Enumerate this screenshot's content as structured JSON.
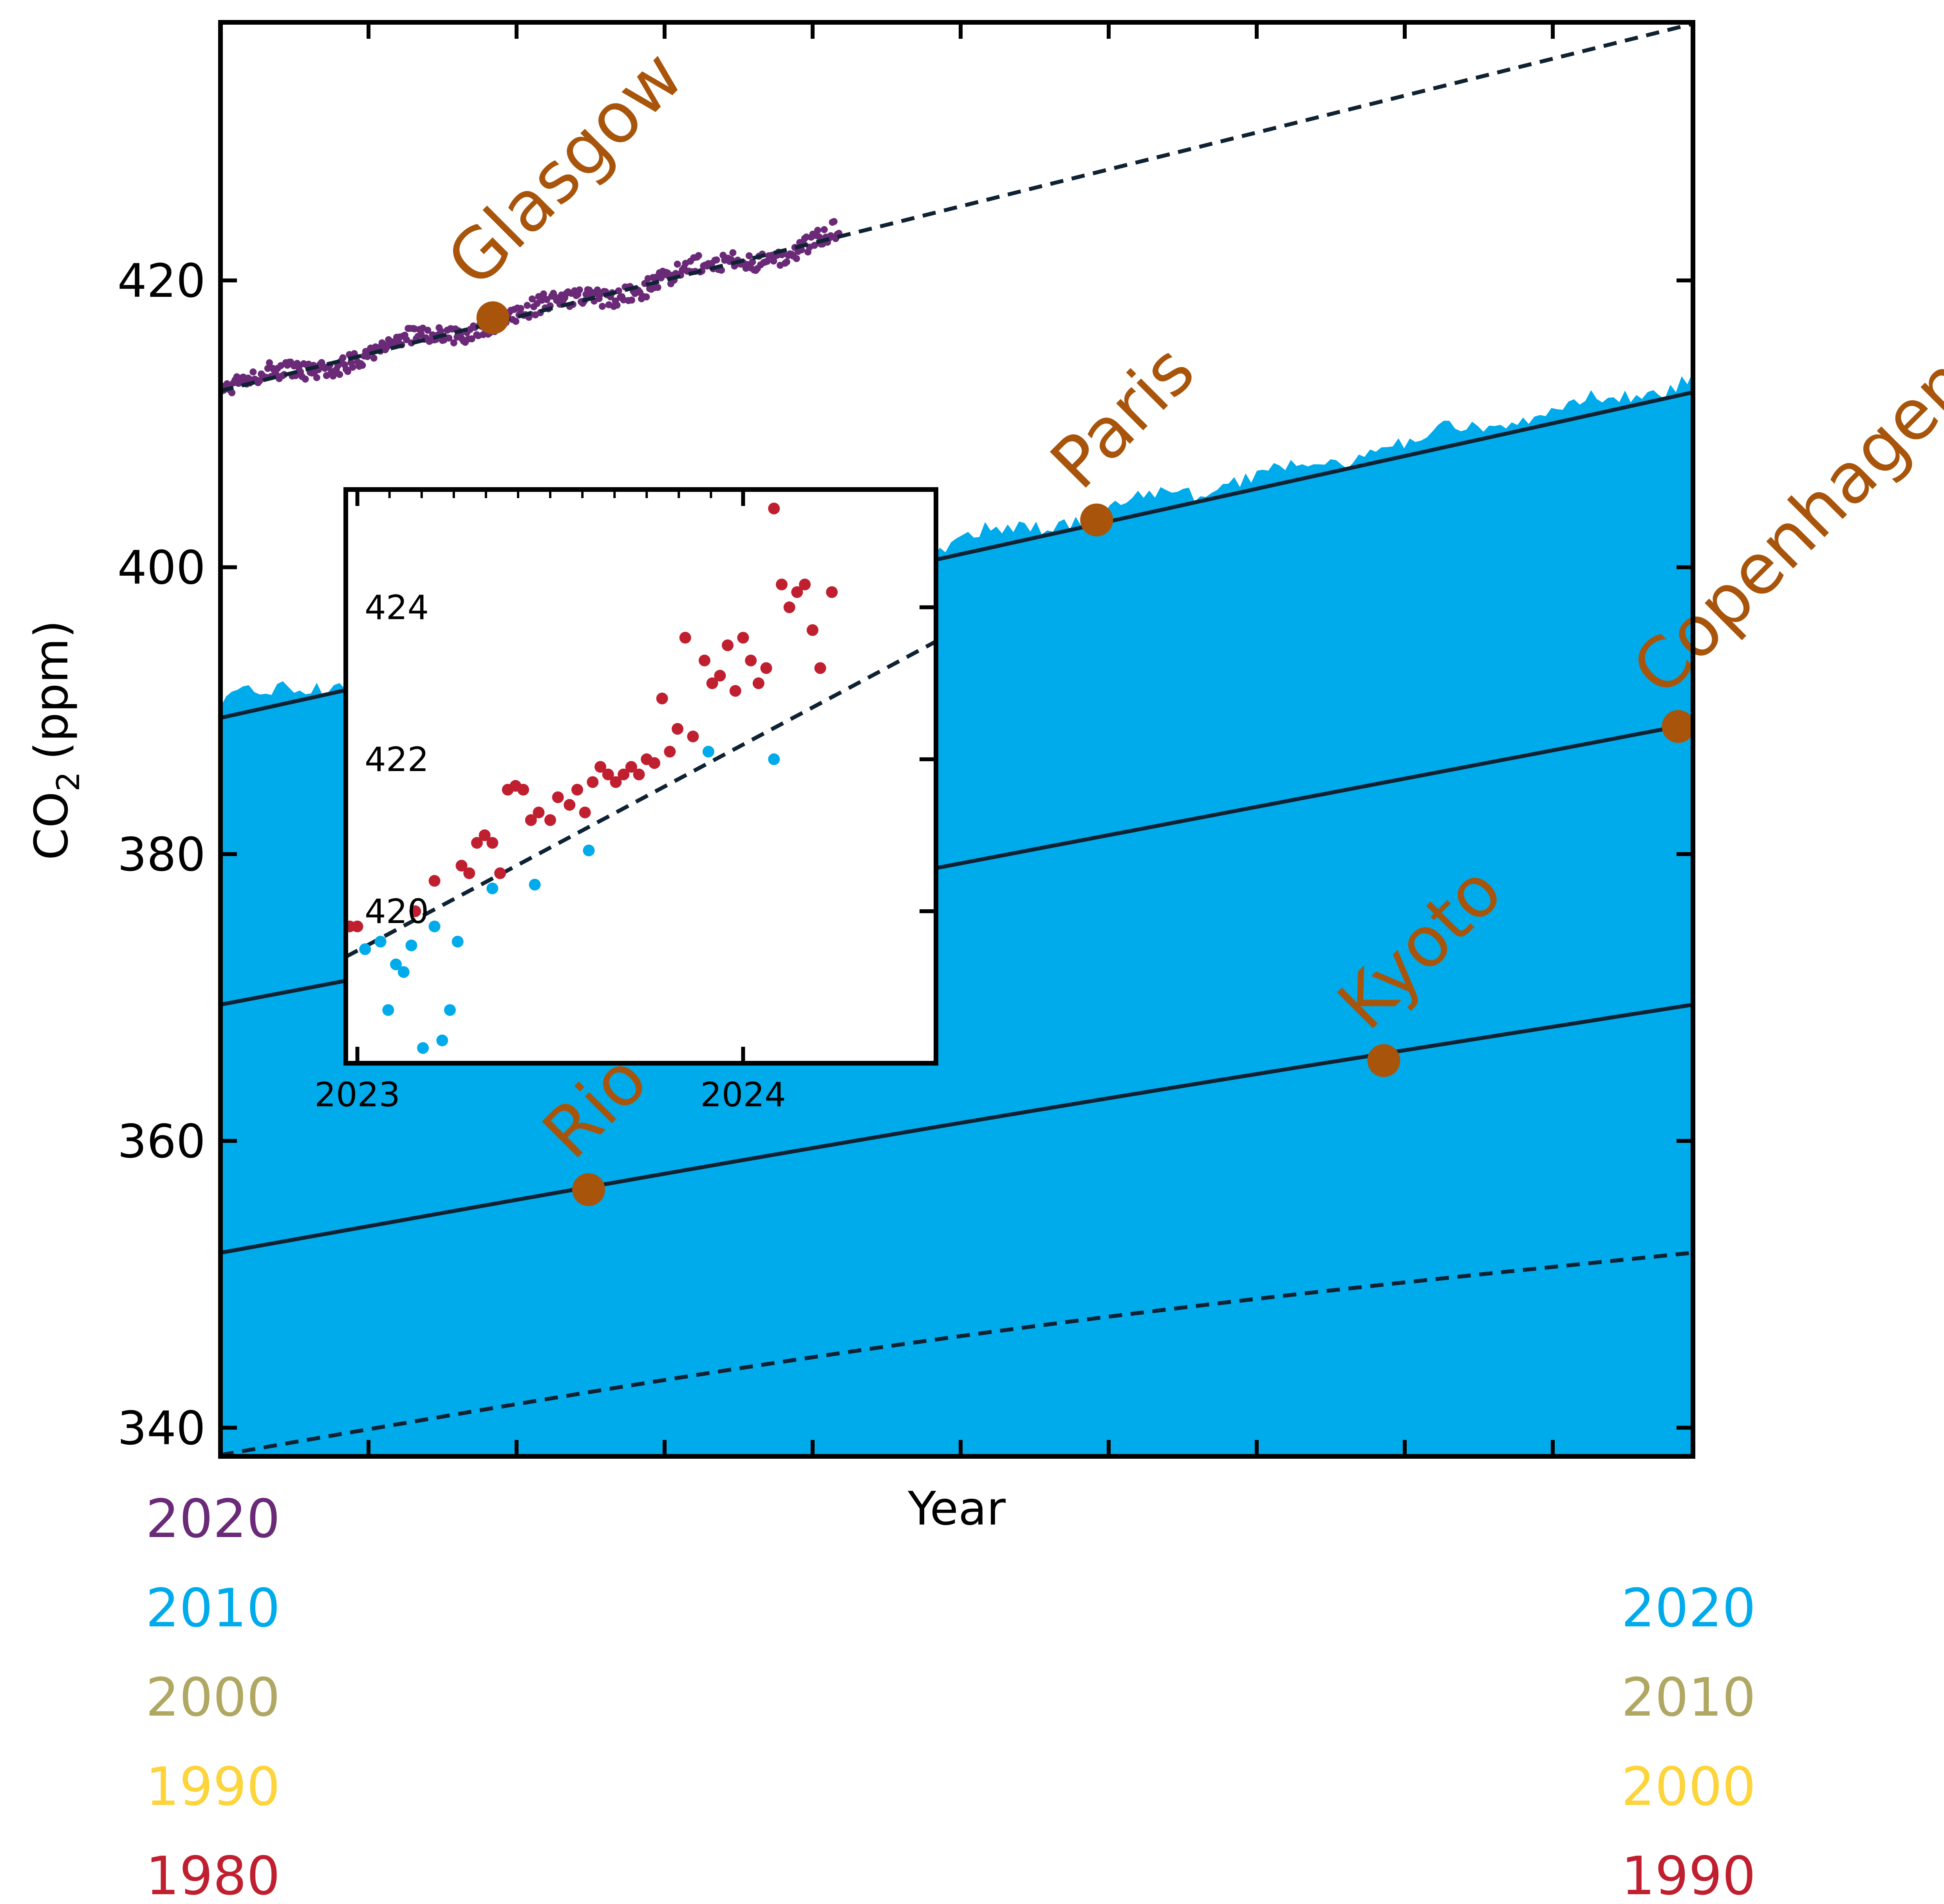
{
  "colors": {
    "band_1980": "#c01f2f",
    "band_1990": "#fdd43a",
    "band_2000": "#b0a862",
    "band_2010": "#00abeb",
    "band_2020": "#6a2a78",
    "fit_line": "#0e2233",
    "event": "#a8550b",
    "axis": "#000000",
    "background": "#ffffff"
  },
  "chart_data": [
    {
      "type": "scatter",
      "title": "",
      "xlabel": "Year",
      "ylabel": "CO₂ (ppm)",
      "ylabel_main": "CO",
      "ylabel_sub": "2",
      "ylabel_unit": "(ppm)",
      "xlim": [
        0,
        10
      ],
      "ylim": [
        338,
        438
      ],
      "yticks": [
        340,
        360,
        380,
        400,
        420
      ],
      "xticks_minor_count": 11,
      "grid": false,
      "decades": [
        {
          "decade": 1980,
          "start_value": 338.1,
          "end_value": 352.2,
          "color_key": "band_1980",
          "trend": "dashed"
        },
        {
          "decade": 1990,
          "start_value": 352.2,
          "end_value": 369.5,
          "color_key": "band_1990",
          "trend": "solid"
        },
        {
          "decade": 2000,
          "start_value": 369.5,
          "end_value": 389.1,
          "color_key": "band_2000",
          "trend": "solid"
        },
        {
          "decade": 2010,
          "start_value": 389.5,
          "end_value": 412.2,
          "color_key": "band_2010",
          "trend": "solid"
        },
        {
          "decade": 2020,
          "start_value": 412.3,
          "end_value": 437.9,
          "observed_until_fraction": 0.42,
          "color_key": "band_2020",
          "trend": "dashed"
        }
      ],
      "events": [
        {
          "label": "Glasgow",
          "x": 1.85,
          "y": 417.4,
          "decade": 2020
        },
        {
          "label": "Paris",
          "x": 5.95,
          "y": 403.3,
          "decade": 2010
        },
        {
          "label": "Copenhagen",
          "x": 9.9,
          "y": 388.9,
          "decade": 2000
        },
        {
          "label": "Kyoto",
          "x": 7.9,
          "y": 365.6,
          "decade": 1990
        },
        {
          "label": "Rio",
          "x": 2.5,
          "y": 356.6,
          "decade": 1990
        }
      ],
      "legend_left": [
        {
          "label": "2020",
          "color_key": "band_2020"
        },
        {
          "label": "2010",
          "color_key": "band_2010"
        },
        {
          "label": "2000",
          "color_key": "band_2000"
        },
        {
          "label": "1990",
          "color_key": "band_1990"
        },
        {
          "label": "1980",
          "color_key": "band_1980"
        }
      ],
      "legend_right": [
        {
          "label": "2020",
          "color_key": "band_2010"
        },
        {
          "label": "2010",
          "color_key": "band_2000"
        },
        {
          "label": "2000",
          "color_key": "band_1990"
        },
        {
          "label": "1990",
          "color_key": "band_1980"
        }
      ]
    },
    {
      "type": "scatter",
      "title": "",
      "xlabel": "",
      "ylabel": "",
      "xlim": [
        2022.97,
        2024.5
      ],
      "ylim": [
        418.0,
        425.55
      ],
      "xticks": [
        2023,
        2024
      ],
      "yticks": [
        420,
        422,
        424
      ],
      "grid": false,
      "trend_line": {
        "x": [
          2022.97,
          2024.5
        ],
        "y": [
          419.4,
          423.55
        ]
      },
      "series": [
        {
          "color_key": "band_2010",
          "x": [
            2023.02,
            2023.06,
            2023.08,
            2023.1,
            2023.12,
            2023.14,
            2023.17,
            2023.2,
            2023.22,
            2023.24,
            2023.26,
            2023.35,
            2023.46,
            2023.6,
            2023.91,
            2024.08
          ],
          "y": [
            419.5,
            419.6,
            418.7,
            419.3,
            419.2,
            419.55,
            418.2,
            419.8,
            418.3,
            418.7,
            419.6,
            420.3,
            420.35,
            420.8,
            422.1,
            422.0
          ]
        },
        {
          "color_key": "band_1980",
          "x": [
            2022.98,
            2023.0,
            2023.15,
            2023.2,
            2023.27,
            2023.29,
            2023.31,
            2023.33,
            2023.35,
            2023.37,
            2023.39,
            2023.41,
            2023.43,
            2023.45,
            2023.47,
            2023.5,
            2023.52,
            2023.55,
            2023.57,
            2023.59,
            2023.61,
            2023.63,
            2023.65,
            2023.67,
            2023.69,
            2023.71,
            2023.73,
            2023.75,
            2023.77,
            2023.79,
            2023.81,
            2023.83,
            2023.85,
            2023.87,
            2023.9,
            2023.92,
            2023.94,
            2023.96,
            2023.98,
            2024.0,
            2024.02,
            2024.04,
            2024.06,
            2024.08,
            2024.1,
            2024.12,
            2024.14,
            2024.16,
            2024.18,
            2024.2,
            2024.23
          ],
          "y": [
            419.8,
            419.8,
            420.0,
            420.4,
            420.6,
            420.5,
            420.9,
            421.0,
            420.9,
            420.5,
            421.6,
            421.65,
            421.6,
            421.2,
            421.3,
            421.2,
            421.5,
            421.4,
            421.6,
            421.3,
            421.7,
            421.9,
            421.8,
            421.7,
            421.8,
            421.9,
            421.8,
            422.0,
            421.95,
            422.8,
            422.1,
            422.4,
            423.6,
            422.3,
            423.3,
            423.0,
            423.1,
            423.5,
            422.9,
            423.6,
            423.3,
            423.0,
            423.2,
            425.3,
            424.3,
            424.0,
            424.2,
            424.3,
            423.7,
            423.2,
            424.2
          ]
        }
      ]
    }
  ]
}
